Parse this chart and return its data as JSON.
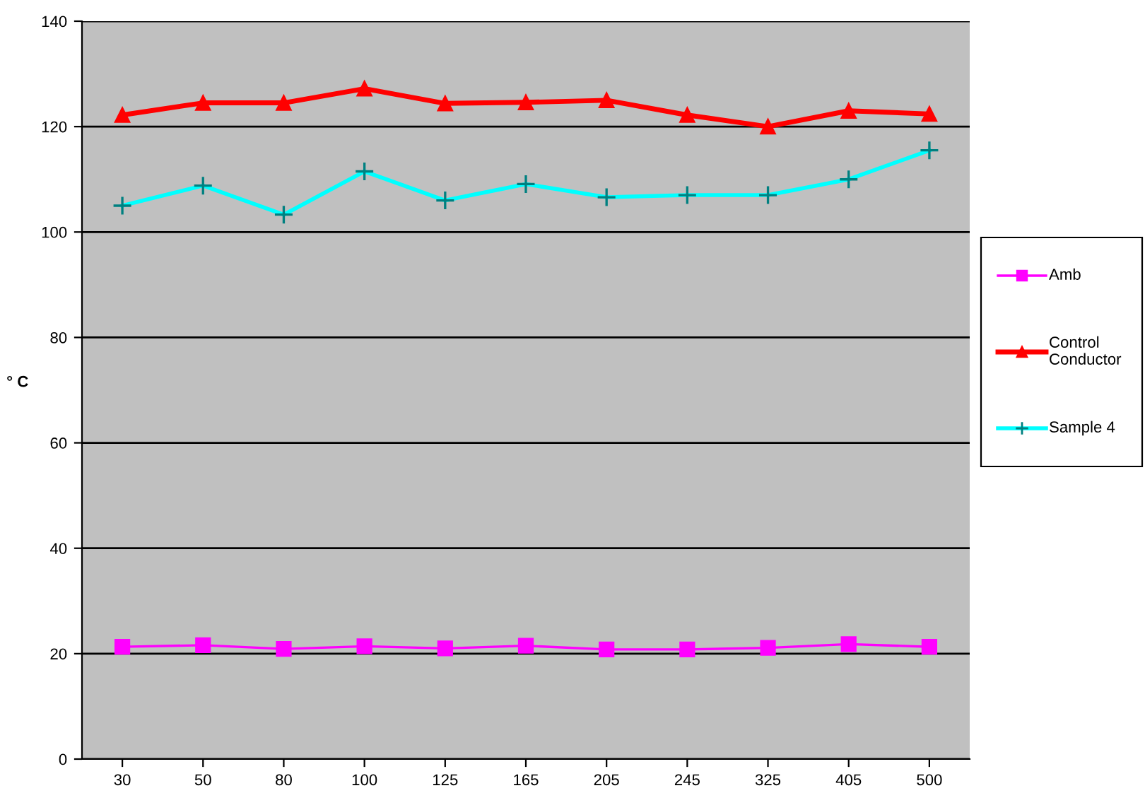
{
  "chart_data": {
    "type": "line",
    "ylabel": "° C",
    "categories": [
      "30",
      "50",
      "80",
      "100",
      "125",
      "165",
      "205",
      "245",
      "325",
      "405",
      "500"
    ],
    "series": [
      {
        "name": "Amb",
        "color": "#ff00ff",
        "marker": "square",
        "values": [
          21.3,
          21.6,
          20.9,
          21.4,
          21.0,
          21.5,
          20.8,
          20.8,
          21.1,
          21.8,
          21.3
        ]
      },
      {
        "name": "Control Conductor",
        "color": "#ff0000",
        "marker": "triangle",
        "values": [
          122.2,
          124.5,
          124.5,
          127.2,
          124.4,
          124.6,
          125.0,
          122.2,
          120.0,
          123.0,
          122.4
        ]
      },
      {
        "name": "Sample 4",
        "color": "#00ffff",
        "marker": "cross",
        "values": [
          105.0,
          108.8,
          103.3,
          111.5,
          106.0,
          109.1,
          106.6,
          107.0,
          107.0,
          110.0,
          115.5
        ]
      }
    ],
    "ylim": [
      0,
      140
    ],
    "yticks": [
      0,
      20,
      40,
      60,
      80,
      100,
      120,
      140
    ],
    "grid": "y",
    "legend": "right",
    "line_style": "solid"
  }
}
